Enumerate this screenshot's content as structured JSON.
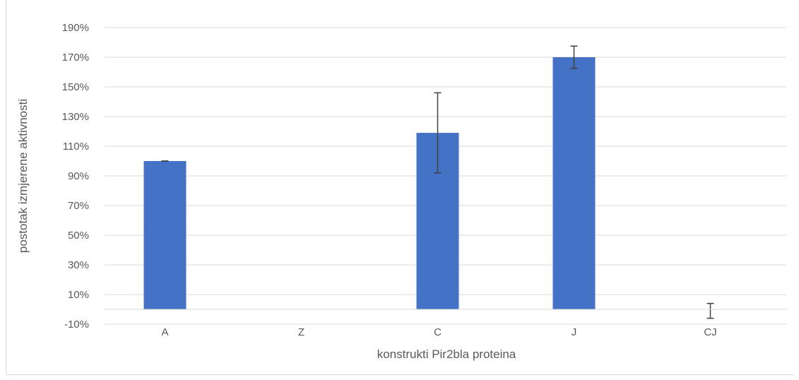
{
  "chart_data": {
    "type": "bar",
    "categories": [
      "A",
      "Z",
      "C",
      "J",
      "CJ"
    ],
    "series": [
      {
        "values": [
          1.0,
          null,
          1.19,
          1.7,
          -0.01
        ],
        "error": [
          0.0,
          null,
          0.27,
          0.075,
          0.05
        ],
        "color": "#4472c4"
      }
    ],
    "yticks": [
      "-10%",
      "10%",
      "30%",
      "50%",
      "70%",
      "90%",
      "110%",
      "130%",
      "150%",
      "170%",
      "190%"
    ],
    "ylim": [
      -0.1,
      1.9
    ],
    "xlabel": "konstrukti Pir2bla proteina",
    "ylabel": "postotak izmjerene aktivnosti",
    "grid": true
  }
}
